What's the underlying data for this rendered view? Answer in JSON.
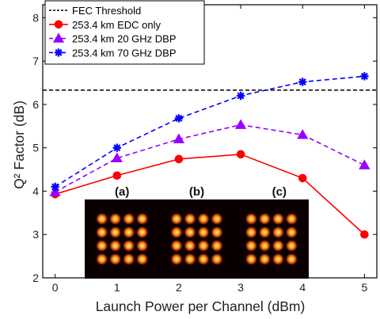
{
  "chart_data": {
    "type": "line",
    "xlabel": "Launch Power per Channel (dBm)",
    "ylabel": "Q² Factor (dB)",
    "xlim": [
      -0.2,
      5.2
    ],
    "ylim": [
      2,
      8.3
    ],
    "xticks": [
      0,
      1,
      2,
      3,
      4,
      5
    ],
    "yticks": [
      2,
      3,
      4,
      5,
      6,
      7,
      8
    ],
    "x": [
      0,
      1,
      2,
      3,
      4,
      5
    ],
    "grid": false,
    "legend_position": "top-left",
    "threshold": {
      "name": "FEC Threshold",
      "value": 6.33,
      "color": "#000000"
    },
    "series": [
      {
        "name": "253.4 km EDC only",
        "values": [
          3.93,
          4.36,
          4.74,
          4.85,
          4.3,
          3.0
        ],
        "color": "#ff0000",
        "marker": "circle",
        "dash": "solid"
      },
      {
        "name": "253.4 km 20 GHz DBP",
        "values": [
          3.98,
          4.76,
          5.2,
          5.53,
          5.3,
          4.6
        ],
        "color": "#9900ff",
        "marker": "triangle",
        "dash": "dashed"
      },
      {
        "name": "253.4 km 70 GHz DBP",
        "values": [
          4.1,
          5.0,
          5.68,
          6.2,
          6.52,
          6.65
        ],
        "color": "#0000ff",
        "marker": "star",
        "dash": "dashed"
      }
    ],
    "inset": {
      "labels": [
        "(a)",
        "(b)",
        "(c)"
      ],
      "grid_size": 4
    }
  }
}
